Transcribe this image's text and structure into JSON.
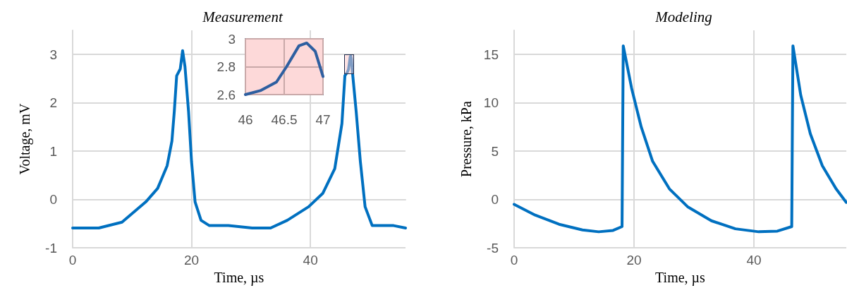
{
  "chart_data": [
    {
      "type": "line",
      "title": "Measurement",
      "xlabel": "Time, µs",
      "ylabel": "Voltage, mV",
      "xlim": [
        0,
        56
      ],
      "ylim": [
        -1,
        3.5
      ],
      "xticks": [
        0,
        20,
        40
      ],
      "yticks": [
        -1,
        0,
        1,
        2,
        3
      ],
      "grid": true,
      "marker": "none",
      "line_style": "solid",
      "series": [
        {
          "color": "#0070c0",
          "x": [
            0,
            4.4,
            8.3,
            12.3,
            14.3,
            15.9,
            16.7,
            17.1,
            17.5,
            18.1,
            18.5,
            18.9,
            19.5,
            20.0,
            20.6,
            21.6,
            23.0,
            26.2,
            30.2,
            33.3,
            36.1,
            39.7,
            42.1,
            44.1,
            45.3,
            45.8,
            46,
            46.2,
            46.4,
            46.53,
            46.69,
            46.79,
            46.9,
            47.0,
            47.7,
            48.4,
            49.2,
            50.4,
            54.0,
            56
          ],
          "values": [
            -0.59,
            -0.59,
            -0.47,
            -0.05,
            0.23,
            0.7,
            1.21,
            1.82,
            2.56,
            2.7,
            3.08,
            2.75,
            1.82,
            0.79,
            -0.05,
            -0.43,
            -0.54,
            -0.54,
            -0.59,
            -0.59,
            -0.43,
            -0.15,
            0.13,
            0.64,
            1.57,
            2.56,
            2.6,
            2.63,
            2.69,
            2.8,
            2.95,
            2.97,
            2.91,
            2.73,
            1.82,
            0.79,
            -0.15,
            -0.54,
            -0.54,
            -0.59
          ]
        }
      ]
    },
    {
      "type": "line",
      "title": "Modeling",
      "xlabel": "Time, µs",
      "ylabel": "Pressure, kPa",
      "xlim": [
        0,
        55.4
      ],
      "ylim": [
        -5,
        17.5
      ],
      "xticks": [
        0,
        20,
        40
      ],
      "yticks": [
        -5,
        0,
        5,
        10,
        15
      ],
      "grid": true,
      "marker": "none",
      "line_style": "solid",
      "series": [
        {
          "color": "#0070c0",
          "x": [
            0,
            3.5,
            7.5,
            11.4,
            14.1,
            16.5,
            18.0,
            18.2,
            19.6,
            21.2,
            23.1,
            25.9,
            29.0,
            32.9,
            36.9,
            40.8,
            43.9,
            46.3,
            46.5,
            47.8,
            49.4,
            51.4,
            53.7,
            55.4
          ],
          "values": [
            -0.5,
            -1.61,
            -2.56,
            -3.15,
            -3.34,
            -3.2,
            -2.8,
            15.9,
            11.5,
            7.5,
            3.95,
            1.1,
            -0.78,
            -2.2,
            -3.03,
            -3.34,
            -3.27,
            -2.8,
            15.9,
            10.8,
            6.8,
            3.5,
            1.1,
            -0.3
          ]
        }
      ]
    },
    {
      "type": "line",
      "xlim": [
        46,
        47
      ],
      "ylim": [
        2.6,
        3
      ],
      "xticks": [
        46,
        46.5,
        47
      ],
      "yticks": [
        2.6,
        2.8,
        3
      ],
      "grid": true,
      "marker": "none",
      "line_style": "solid",
      "series": [
        {
          "color": "#2e5fa0",
          "x": [
            46,
            46.2,
            46.4,
            46.53,
            46.69,
            46.79,
            46.9,
            47.0
          ],
          "values": [
            2.6,
            2.63,
            2.69,
            2.8,
            2.95,
            2.97,
            2.91,
            2.73
          ]
        }
      ]
    }
  ]
}
